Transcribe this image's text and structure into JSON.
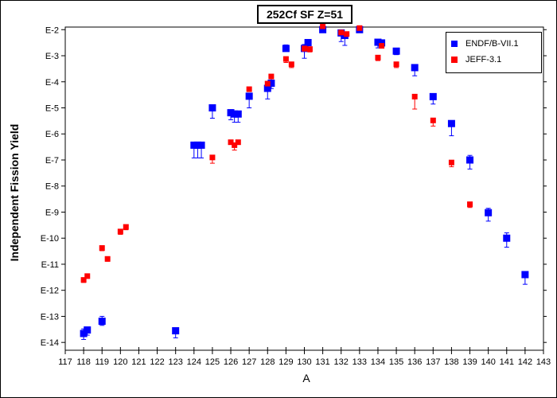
{
  "chart_data": {
    "type": "scatter",
    "title": "252Cf SF Z=51",
    "xlabel": "A",
    "ylabel": "Independent Fission Yield",
    "xlim": [
      117,
      143
    ],
    "ylim_log10": [
      -14.3,
      -1.9
    ],
    "y_scale": "log",
    "x_ticks": [
      117,
      118,
      119,
      120,
      121,
      122,
      123,
      124,
      125,
      126,
      127,
      128,
      129,
      130,
      131,
      132,
      133,
      134,
      135,
      136,
      137,
      138,
      139,
      140,
      141,
      142,
      143
    ],
    "y_ticks": [
      {
        "label": "E-2",
        "exp": -2
      },
      {
        "label": "E-3",
        "exp": -3
      },
      {
        "label": "E-4",
        "exp": -4
      },
      {
        "label": "E-5",
        "exp": -5
      },
      {
        "label": "E-6",
        "exp": -6
      },
      {
        "label": "E-7",
        "exp": -7
      },
      {
        "label": "E-8",
        "exp": -8
      },
      {
        "label": "E-9",
        "exp": -9
      },
      {
        "label": "E-10",
        "exp": -10
      },
      {
        "label": "E-11",
        "exp": -11
      },
      {
        "label": "E-12",
        "exp": -12
      },
      {
        "label": "E-13",
        "exp": -13
      },
      {
        "label": "E-14",
        "exp": -14
      }
    ],
    "grid": false,
    "legend_position": "top-right",
    "series": [
      {
        "name": "ENDF/B-VII.1",
        "color": "#0000ff",
        "marker": "square",
        "points": [
          {
            "x": 118.0,
            "y": 2.2e-14,
            "lo": 1.3e-14,
            "hi": 3.3e-14
          },
          {
            "x": 118.2,
            "y": 3e-14,
            "lo": 1.9e-14,
            "hi": 3.8e-14
          },
          {
            "x": 119.0,
            "y": 6.5e-14,
            "lo": 4.5e-14,
            "hi": 1e-13
          },
          {
            "x": 123.0,
            "y": 2.8e-14,
            "lo": 1.5e-14,
            "hi": 2.8e-14
          },
          {
            "x": 124.0,
            "y": 3.7e-07,
            "lo": 1.2e-07,
            "hi": 3.7e-07
          },
          {
            "x": 124.2,
            "y": 3.7e-07,
            "lo": 1.2e-07,
            "hi": 3.7e-07
          },
          {
            "x": 124.4,
            "y": 3.7e-07,
            "lo": 1.2e-07,
            "hi": 3.7e-07
          },
          {
            "x": 125.0,
            "y": 1e-05,
            "lo": 4e-06,
            "hi": 1e-05
          },
          {
            "x": 126.0,
            "y": 6.5e-06,
            "lo": 3.5e-06,
            "hi": 8.5e-06
          },
          {
            "x": 126.2,
            "y": 5.8e-06,
            "lo": 2.8e-06,
            "hi": 6.8e-06
          },
          {
            "x": 126.4,
            "y": 5.8e-06,
            "lo": 2.8e-06,
            "hi": 6.8e-06
          },
          {
            "x": 127.0,
            "y": 2.8e-05,
            "lo": 1e-05,
            "hi": 2.8e-05
          },
          {
            "x": 128.0,
            "y": 5.6e-05,
            "lo": 2.2e-05,
            "hi": 9e-05
          },
          {
            "x": 128.2,
            "y": 8.8e-05,
            "lo": 5.5e-05,
            "hi": 0.00014
          },
          {
            "x": 129.0,
            "y": 0.0019,
            "lo": 0.0019,
            "hi": 0.0026
          },
          {
            "x": 130.0,
            "y": 0.0019,
            "lo": 0.0008,
            "hi": 0.0027
          },
          {
            "x": 130.2,
            "y": 0.0032,
            "lo": 0.002,
            "hi": 0.0039
          },
          {
            "x": 131.0,
            "y": 0.01,
            "lo": 0.01,
            "hi": 0.01
          },
          {
            "x": 132.0,
            "y": 0.0075,
            "lo": 0.0035,
            "hi": 0.0085
          },
          {
            "x": 132.2,
            "y": 0.006,
            "lo": 0.0025,
            "hi": 0.006
          },
          {
            "x": 133.0,
            "y": 0.01,
            "lo": 0.01,
            "hi": 0.01
          },
          {
            "x": 134.0,
            "y": 0.0033,
            "lo": 0.002,
            "hi": 0.0038
          },
          {
            "x": 134.2,
            "y": 0.0031,
            "lo": 0.0021,
            "hi": 0.0036
          },
          {
            "x": 135.0,
            "y": 0.0015,
            "lo": 0.0011,
            "hi": 0.0015
          },
          {
            "x": 136.0,
            "y": 0.00035,
            "lo": 0.00017,
            "hi": 0.00035
          },
          {
            "x": 137.0,
            "y": 2.7e-05,
            "lo": 1.4e-05,
            "hi": 2.7e-05
          },
          {
            "x": 138.0,
            "y": 2.5e-06,
            "lo": 8.5e-07,
            "hi": 2.5e-06
          },
          {
            "x": 139.0,
            "y": 1e-07,
            "lo": 4.5e-08,
            "hi": 1.5e-07
          },
          {
            "x": 140.0,
            "y": 9.5e-10,
            "lo": 4.5e-10,
            "hi": 1.4e-09
          },
          {
            "x": 141.0,
            "y": 1e-10,
            "lo": 4.5e-11,
            "hi": 1.6e-10
          },
          {
            "x": 142.0,
            "y": 4e-12,
            "lo": 1.7e-12,
            "hi": 4e-12
          }
        ]
      },
      {
        "name": "JEFF-3.1",
        "color": "#ff0000",
        "marker": "square",
        "points": [
          {
            "x": 118.0,
            "y": 2.5e-12,
            "lo": 2e-12,
            "hi": 2.5e-12
          },
          {
            "x": 118.2,
            "y": 3.5e-12,
            "lo": 3e-12,
            "hi": 3.5e-12
          },
          {
            "x": 119.0,
            "y": 4.2e-11,
            "lo": 3.3e-11,
            "hi": 4.2e-11
          },
          {
            "x": 119.3,
            "y": 1.6e-11,
            "lo": 1.3e-11,
            "hi": 1.6e-11
          },
          {
            "x": 120.0,
            "y": 1.8e-10,
            "lo": 1.4e-10,
            "hi": 1.8e-10
          },
          {
            "x": 120.3,
            "y": 2.7e-10,
            "lo": 2.1e-10,
            "hi": 2.7e-10
          },
          {
            "x": 125.0,
            "y": 1.25e-07,
            "lo": 7.5e-08,
            "hi": 1.25e-07
          },
          {
            "x": 126.0,
            "y": 4.8e-07,
            "lo": 4.8e-07,
            "hi": 4.8e-07
          },
          {
            "x": 126.2,
            "y": 3.7e-07,
            "lo": 2.4e-07,
            "hi": 3.7e-07
          },
          {
            "x": 126.4,
            "y": 4.8e-07,
            "lo": 4.8e-07,
            "hi": 4.8e-07
          },
          {
            "x": 127.0,
            "y": 5.2e-05,
            "lo": 5.2e-05,
            "hi": 5.2e-05
          },
          {
            "x": 128.0,
            "y": 8.5e-05,
            "lo": 8.5e-05,
            "hi": 8.5e-05
          },
          {
            "x": 128.2,
            "y": 0.00016,
            "lo": 0.00016,
            "hi": 0.00016
          },
          {
            "x": 129.0,
            "y": 0.00075,
            "lo": 0.00055,
            "hi": 0.00075
          },
          {
            "x": 129.3,
            "y": 0.00047,
            "lo": 0.00035,
            "hi": 0.00047
          },
          {
            "x": 130.0,
            "y": 0.0019,
            "lo": 0.0015,
            "hi": 0.0019
          },
          {
            "x": 130.3,
            "y": 0.0018,
            "lo": 0.0014,
            "hi": 0.0018
          },
          {
            "x": 131.0,
            "y": 0.0135,
            "lo": 0.0135,
            "hi": 0.0135
          },
          {
            "x": 132.0,
            "y": 0.0078,
            "lo": 0.0078,
            "hi": 0.0078
          },
          {
            "x": 132.3,
            "y": 0.0068,
            "lo": 0.0068,
            "hi": 0.0068
          },
          {
            "x": 133.0,
            "y": 0.0115,
            "lo": 0.0115,
            "hi": 0.0115
          },
          {
            "x": 134.0,
            "y": 0.00085,
            "lo": 0.00065,
            "hi": 0.00085
          },
          {
            "x": 134.2,
            "y": 0.0024,
            "lo": 0.0024,
            "hi": 0.0024
          },
          {
            "x": 135.0,
            "y": 0.00047,
            "lo": 0.00035,
            "hi": 0.00047
          },
          {
            "x": 136.0,
            "y": 2.7e-05,
            "lo": 9e-06,
            "hi": 2.7e-05
          },
          {
            "x": 137.0,
            "y": 3.3e-06,
            "lo": 2e-06,
            "hi": 3.3e-06
          },
          {
            "x": 138.0,
            "y": 8e-08,
            "lo": 5.5e-08,
            "hi": 8e-08
          },
          {
            "x": 139.0,
            "y": 2e-09,
            "lo": 1.5e-09,
            "hi": 2e-09
          }
        ]
      }
    ]
  }
}
